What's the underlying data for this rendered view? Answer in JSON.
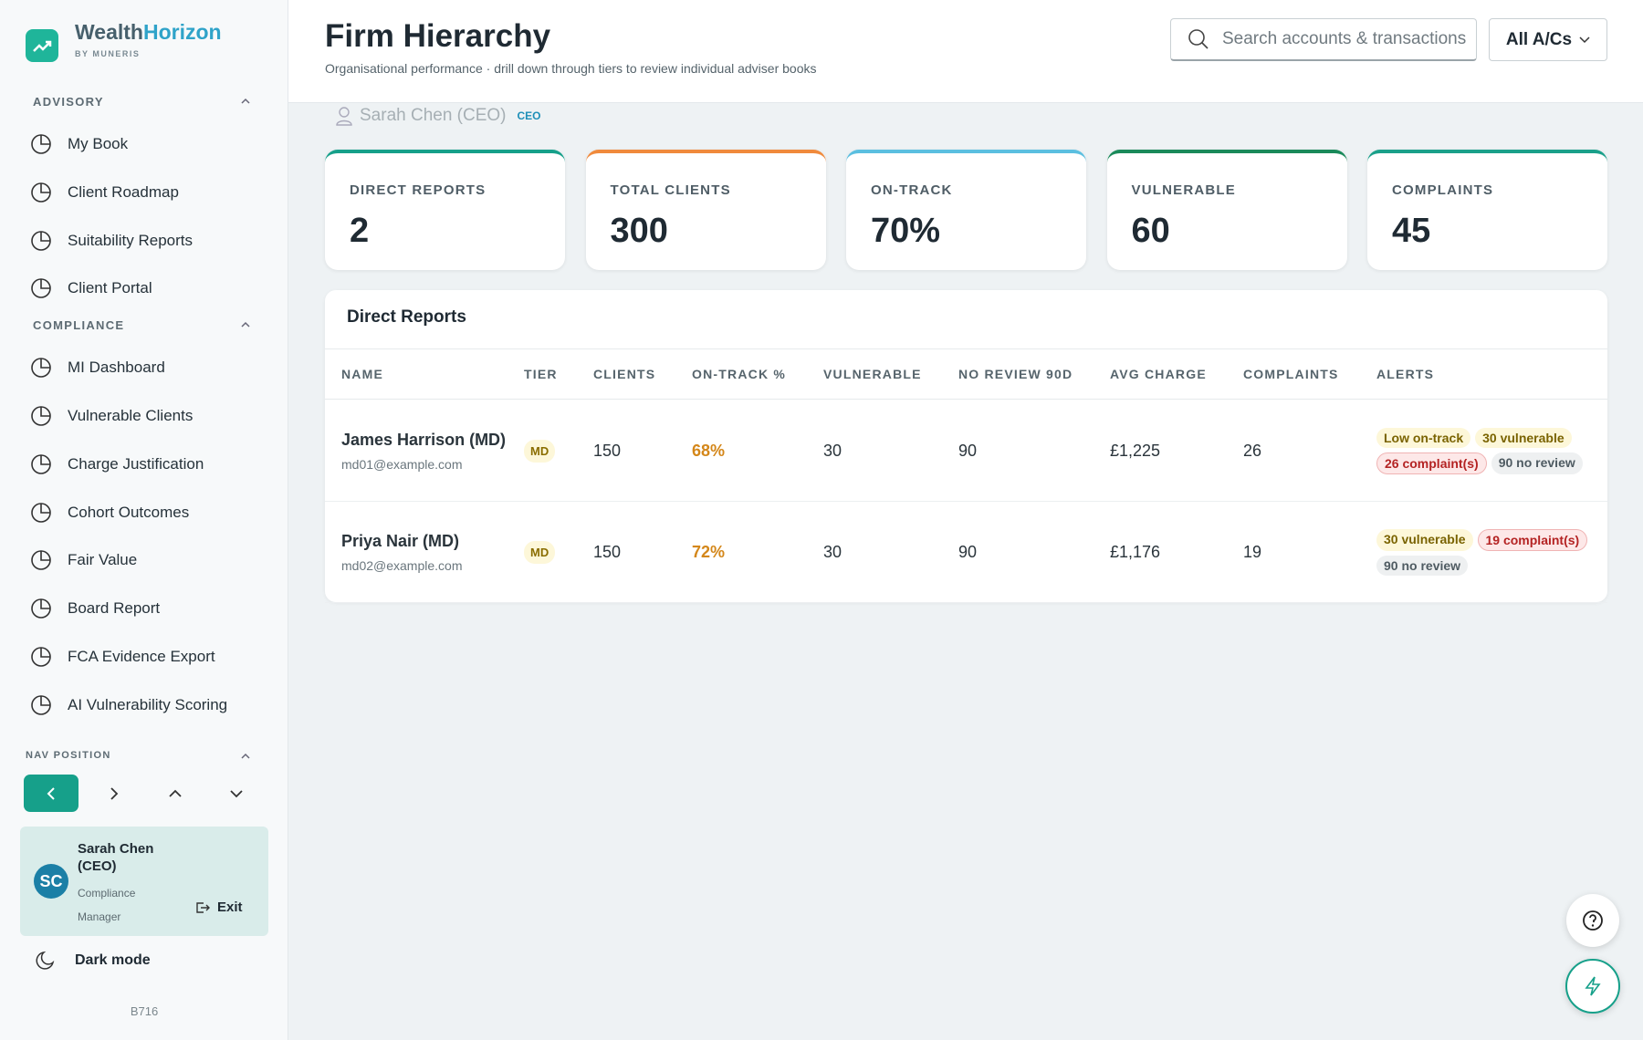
{
  "brand": {
    "name_a": "Wealth",
    "name_b": "Horizon",
    "tagline": "BY MUNERIS"
  },
  "sidebar": {
    "sections": [
      {
        "title": "ADVISORY",
        "items": [
          "My Book",
          "Client Roadmap",
          "Suitability Reports",
          "Client Portal"
        ]
      },
      {
        "title": "COMPLIANCE",
        "items": [
          "MI Dashboard",
          "Vulnerable Clients",
          "Charge Justification",
          "Cohort Outcomes",
          "Fair Value",
          "Board Report",
          "FCA Evidence Export",
          "AI Vulnerability Scoring"
        ]
      }
    ],
    "nav_position": "NAV POSITION",
    "user": {
      "initials": "SC",
      "name": "Sarah Chen (CEO)",
      "role": "Compliance Manager",
      "exit": "Exit"
    },
    "dark_mode": "Dark mode",
    "build": "B716"
  },
  "header": {
    "title": "Firm Hierarchy",
    "subtitle": "Organisational performance · drill down through tiers to review individual adviser books",
    "search_placeholder": "Search accounts & transactions",
    "account_filter": "All A/Cs"
  },
  "breadcrumb": {
    "name": "Sarah Chen (CEO)",
    "badge": "CEO"
  },
  "kpis": [
    {
      "label": "DIRECT REPORTS",
      "value": "2"
    },
    {
      "label": "TOTAL CLIENTS",
      "value": "300"
    },
    {
      "label": "ON-TRACK",
      "value": "70%"
    },
    {
      "label": "VULNERABLE",
      "value": "60"
    },
    {
      "label": "COMPLAINTS",
      "value": "45"
    }
  ],
  "table": {
    "title": "Direct Reports",
    "columns": [
      "NAME",
      "TIER",
      "CLIENTS",
      "ON-TRACK %",
      "VULNERABLE",
      "NO REVIEW 90D",
      "AVG CHARGE",
      "COMPLAINTS",
      "ALERTS"
    ],
    "rows": [
      {
        "name": "James Harrison (MD)",
        "email": "md01@example.com",
        "tier": "MD",
        "clients": "150",
        "on_track": "68%",
        "vulnerable": "30",
        "no_review": "90",
        "avg_charge": "£1,225",
        "complaints": "26",
        "alerts": [
          "Low on-track",
          "30 vulnerable",
          "26 complaint(s)",
          "90 no review"
        ]
      },
      {
        "name": "Priya Nair (MD)",
        "email": "md02@example.com",
        "tier": "MD",
        "clients": "150",
        "on_track": "72%",
        "vulnerable": "30",
        "no_review": "90",
        "avg_charge": "£1,176",
        "complaints": "19",
        "alerts": [
          "30 vulnerable",
          "19 complaint(s)",
          "90 no review"
        ]
      }
    ]
  }
}
